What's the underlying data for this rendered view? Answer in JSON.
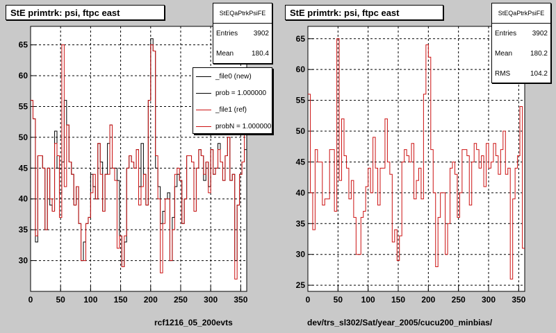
{
  "colors": {
    "background": "#c9c9c9",
    "frame": "#ffffff",
    "new_line": "#000000",
    "ref_line": "#cc1111"
  },
  "left_panel": {
    "title": "StE primtrk: psi, ftpc east",
    "stats": {
      "name": "StEQaPtrkPsiFE",
      "rows": [
        {
          "label": "Entries",
          "value": "3902"
        },
        {
          "label": "Mean",
          "value": "180.4"
        }
      ]
    },
    "legend": [
      {
        "label": "_file0 (new)",
        "color": "#000000"
      },
      {
        "label": "prob = 1.000000",
        "color": "#000000"
      },
      {
        "label": "_file1 (ref)",
        "color": "#cc1111"
      },
      {
        "label": "probN = 1.000000",
        "color": "#cc1111"
      }
    ],
    "xcaption": "rcf1216_05_200evts"
  },
  "right_panel": {
    "title": "StE primtrk: psi, ftpc east",
    "stats": {
      "name": "StEQaPtrkPsiFE",
      "rows": [
        {
          "label": "Entries",
          "value": "3902"
        },
        {
          "label": "Mean",
          "value": "180.2"
        },
        {
          "label": "RMS",
          "value": "104.2"
        }
      ]
    },
    "xcaption": "dev/trs_sl302/Sat/year_2005/cucu200_minbias/"
  },
  "chart_data": [
    {
      "type": "line",
      "title": "StE primtrk: psi, ftpc east",
      "xlabel": "rcf1216_05_200evts",
      "ylabel": "",
      "xlim": [
        0,
        360
      ],
      "ylim": [
        25,
        68
      ],
      "xticks": [
        0,
        50,
        100,
        150,
        200,
        250,
        300,
        350
      ],
      "yticks": [
        30,
        35,
        40,
        45,
        50,
        55,
        60,
        65
      ],
      "grid": true,
      "legend_position": "top-right",
      "bin_width": 4,
      "series": [
        {
          "name": "_file0 (new)",
          "values": [
            56,
            53,
            33,
            47,
            47,
            45,
            35,
            45,
            39,
            38,
            51,
            45,
            41,
            46,
            56,
            52,
            46,
            44,
            39,
            42,
            36,
            30,
            33,
            36,
            37,
            44,
            42,
            40,
            49,
            46,
            38,
            44,
            49,
            52,
            45,
            45,
            43,
            34,
            29,
            33,
            45,
            47,
            46,
            45,
            48,
            42,
            49,
            44,
            39,
            56,
            66,
            64,
            45,
            42,
            36,
            38,
            40,
            41,
            30,
            37,
            42,
            44,
            43,
            36,
            40,
            47,
            47,
            46,
            38,
            45,
            48,
            47,
            43,
            46,
            42,
            48,
            44,
            45,
            49,
            46,
            43,
            47,
            50,
            43,
            44,
            30,
            39,
            44,
            46,
            48
          ],
          "color": "#000000"
        },
        {
          "name": "_file1 (ref)",
          "values": [
            56,
            53,
            34,
            47,
            47,
            45,
            35,
            45,
            40,
            38,
            49,
            47,
            37,
            65,
            42,
            52,
            46,
            44,
            39,
            42,
            36,
            30,
            30,
            36,
            37,
            41,
            44,
            40,
            49,
            44,
            38,
            44,
            44,
            52,
            45,
            43,
            32,
            34,
            29,
            34,
            45,
            47,
            46,
            45,
            48,
            39,
            42,
            44,
            39,
            56,
            65,
            64,
            47,
            40,
            28,
            36,
            40,
            40,
            30,
            35,
            44,
            45,
            43,
            36,
            40,
            47,
            47,
            46,
            38,
            45,
            48,
            47,
            44,
            46,
            41,
            48,
            44,
            45,
            48,
            46,
            43,
            47,
            50,
            43,
            44,
            27,
            39,
            44,
            46,
            51
          ],
          "color": "#cc1111"
        }
      ]
    },
    {
      "type": "line",
      "title": "StE primtrk: psi, ftpc east",
      "xlabel": "dev/trs_sl302/Sat/year_2005/cucu200_minbias/",
      "ylabel": "",
      "xlim": [
        0,
        360
      ],
      "ylim": [
        24,
        67
      ],
      "xticks": [
        0,
        50,
        100,
        150,
        200,
        250,
        300,
        350
      ],
      "yticks": [
        25,
        30,
        35,
        40,
        45,
        50,
        55,
        60,
        65
      ],
      "grid": true,
      "bin_width": 4,
      "series": [
        {
          "values": [
            56,
            40,
            34,
            47,
            45,
            45,
            38,
            39,
            39,
            47,
            47,
            37,
            65,
            42,
            52,
            46,
            44,
            39,
            42,
            36,
            30,
            30,
            36,
            37,
            41,
            44,
            40,
            49,
            44,
            38,
            44,
            44,
            52,
            45,
            43,
            32,
            34,
            29,
            33,
            45,
            47,
            46,
            45,
            48,
            39,
            42,
            44,
            39,
            56,
            64,
            62,
            47,
            40,
            28,
            36,
            40,
            40,
            30,
            35,
            44,
            45,
            43,
            36,
            40,
            47,
            47,
            46,
            38,
            45,
            48,
            47,
            44,
            46,
            41,
            48,
            44,
            45,
            48,
            46,
            43,
            47,
            50,
            43,
            44,
            26,
            39,
            44,
            46,
            54,
            31
          ],
          "color": "#cc1111"
        }
      ]
    }
  ]
}
